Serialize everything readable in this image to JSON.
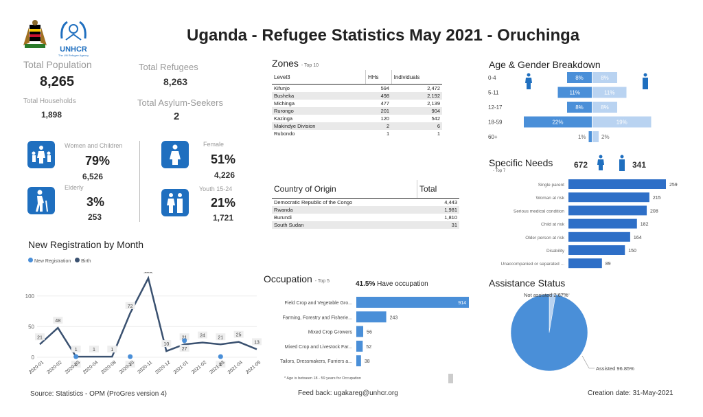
{
  "header": {
    "title": "Uganda - Refugee Statistics May 2021 - Oruchinga",
    "unhcr_label": "UNHCR",
    "unhcr_sub": "The UN Refugee Agency"
  },
  "kpis": {
    "total_population_label": "Total Population",
    "total_population": "8,265",
    "total_refugees_label": "Total Refugees",
    "total_refugees": "8,263",
    "total_households_label": "Total Households",
    "total_households": "1,898",
    "total_asylum_label": "Total Asylum-Seekers",
    "total_asylum": "2",
    "women_children_label": "Women and Children",
    "women_children_pct": "79%",
    "women_children_count": "6,526",
    "female_label": "Female",
    "female_pct": "51%",
    "female_count": "4,226",
    "elderly_label": "Elderly",
    "elderly_pct": "3%",
    "elderly_count": "253",
    "youth_label": "Youth 15-24",
    "youth_pct": "21%",
    "youth_count": "1,721"
  },
  "zones": {
    "title": "Zones",
    "subtitle": "- Top 10",
    "headers": [
      "Level3",
      "HHs",
      "Individuals"
    ],
    "rows": [
      [
        "Kifunjo",
        "594",
        "2,472"
      ],
      [
        "Busheka",
        "498",
        "2,192"
      ],
      [
        "Michinga",
        "477",
        "2,139"
      ],
      [
        "Rurongo",
        "201",
        "904"
      ],
      [
        "Kazinga",
        "120",
        "542"
      ],
      [
        "Makindye Division",
        "2",
        "6"
      ],
      [
        "Rubondo",
        "1",
        "1"
      ]
    ]
  },
  "origin": {
    "headers": [
      "Country of Origin",
      "Total"
    ],
    "rows": [
      [
        "Democratic Republic of the Congo",
        "4,443"
      ],
      [
        "Rwanda",
        "1,981"
      ],
      [
        "Burundi",
        "1,810"
      ],
      [
        "South Sudan",
        "31"
      ]
    ]
  },
  "new_registration": {
    "title": "New Registration by Month",
    "legend": [
      "New Registration",
      "Birth"
    ],
    "colors": {
      "new": "#4a8fd8",
      "birth": "#3a5170"
    }
  },
  "occupation": {
    "title": "Occupation",
    "subtitle": "- Top 5",
    "have_pct": "41.5%",
    "have_text": "Have occupation",
    "note": "* Age is between 18 - 59 years for Occupation"
  },
  "age_gender": {
    "title": "Age & Gender Breakdown"
  },
  "specific_needs": {
    "title": "Specific Needs",
    "subtitle": "- Top 7",
    "female_count": "672",
    "male_count": "341"
  },
  "assistance": {
    "title": "Assistance Status",
    "not_assisted_label": "Not assisted 2.67%",
    "assisted_label": "Assisted 96.85%"
  },
  "footer": {
    "source": "Source: Statistics - OPM (ProGres version 4)",
    "feedback": "Feed back: ugakareg@unhcr.org",
    "creation": "Creation date: 31-May-2021"
  },
  "chart_data": [
    {
      "type": "line",
      "title": "New Registration by Month",
      "categories": [
        "2020-01",
        "2020-02",
        "2020-03",
        "2020-04",
        "2020-08",
        "2020-10",
        "2020-11",
        "2020-12",
        "2021-01",
        "2021-02",
        "2021-03",
        "2021-04",
        "2021-05"
      ],
      "ylim": [
        0,
        130
      ],
      "yticks": [
        0,
        50,
        100
      ],
      "series": [
        {
          "name": "New Registration",
          "values": [
            21,
            48,
            1,
            1,
            1,
            72,
            129,
            10,
            21,
            24,
            21,
            25,
            13
          ]
        },
        {
          "name": "Birth",
          "values": [
            null,
            null,
            1,
            null,
            null,
            1,
            null,
            null,
            27,
            null,
            1,
            null,
            null
          ]
        }
      ]
    },
    {
      "type": "bar",
      "title": "Occupation",
      "categories": [
        "Field Crop and Vegetable Gro...",
        "Farming, Forestry and Fisherie...",
        "Mixed Crop Growers",
        "Mixed Crop and Livestock Far...",
        "Tailors, Dressmakers, Furriers a..."
      ],
      "values": [
        914,
        243,
        56,
        52,
        38
      ]
    },
    {
      "type": "bar",
      "title": "Age & Gender Breakdown",
      "categories": [
        "0-4",
        "5-11",
        "12-17",
        "18-59",
        "60+"
      ],
      "series": [
        {
          "name": "Female",
          "values": [
            8,
            11,
            8,
            22,
            1
          ],
          "labels": [
            "8%",
            "11%",
            "8%",
            "22%",
            "1%"
          ]
        },
        {
          "name": "Male",
          "values": [
            8,
            11,
            8,
            19,
            2
          ],
          "labels": [
            "8%",
            "11%",
            "8%",
            "19%",
            "2%"
          ]
        }
      ]
    },
    {
      "type": "bar",
      "title": "Specific Needs",
      "categories": [
        "Single parent",
        "Woman at risk",
        "Serious medical condition",
        "Child at risk",
        "Older person at risk",
        "Disability",
        "Unaccompanied or separated ..."
      ],
      "values": [
        259,
        215,
        208,
        182,
        164,
        150,
        89
      ]
    },
    {
      "type": "pie",
      "title": "Assistance Status",
      "categories": [
        "Not assisted",
        "Assisted"
      ],
      "values": [
        2.67,
        96.85
      ]
    }
  ]
}
